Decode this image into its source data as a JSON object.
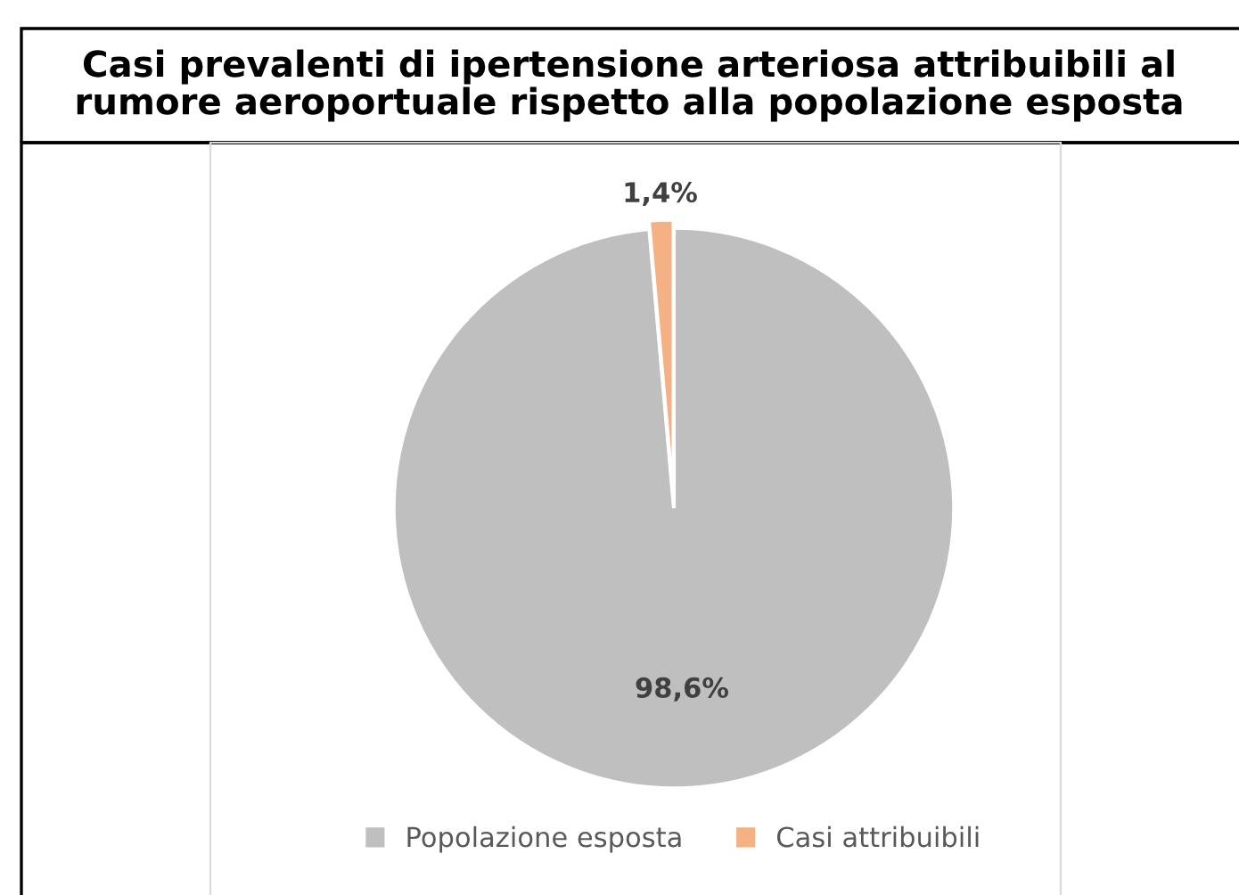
{
  "chart_data": {
    "type": "pie",
    "title": "Casi prevalenti di ipertensione arteriosa attribuibili al\nrumore aeroportuale rispetto alla popolazione esposta",
    "categories": [
      "Popolazione esposta",
      "Casi attribuibili"
    ],
    "values": [
      98.6,
      1.4
    ],
    "colors": [
      "#bfbfbf",
      "#f4b183"
    ],
    "value_labels": [
      "98,6%",
      "1,4%"
    ],
    "legend": "bottom"
  }
}
